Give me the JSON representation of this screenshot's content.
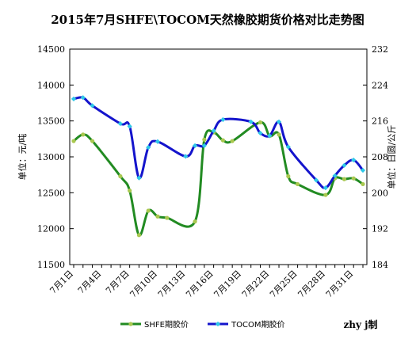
{
  "chart_data": {
    "type": "line",
    "title": "2015年7月SHFE\\TOCOM天然橡胶期货价格对比走势图",
    "ylabel_left": "单位：元/吨",
    "ylabel_right": "单位：日圆/公斤",
    "credit": "zhy j制",
    "categories": [
      "7月1日",
      "7月4日",
      "7月7日",
      "7月10日",
      "7月13日",
      "7月16日",
      "7月19日",
      "7月22日",
      "7月25日",
      "7月28日",
      "7月31日"
    ],
    "x_range": [
      1,
      32
    ],
    "y_left": {
      "min": 11500,
      "max": 14500,
      "ticks": [
        11500,
        12000,
        12500,
        13000,
        13500,
        14000,
        14500
      ]
    },
    "y_right": {
      "min": 184,
      "max": 232,
      "ticks": [
        184,
        192,
        200,
        208,
        216,
        224,
        232
      ]
    },
    "grid": false,
    "legend_position": "bottom",
    "series": [
      {
        "name": "SHFE期胶价",
        "axis": "left",
        "color": "#228B22",
        "marker_color": "#A9C850",
        "x": [
          1,
          2,
          3,
          6,
          7,
          8,
          9,
          10,
          11,
          14,
          15,
          16,
          17,
          18,
          21,
          22,
          23,
          24,
          25,
          28,
          29,
          30,
          31,
          32
        ],
        "y": [
          13220,
          13310,
          13220,
          12730,
          12530,
          11910,
          12250,
          12170,
          12150,
          12100,
          13240,
          13340,
          13230,
          13220,
          13480,
          13290,
          13310,
          12730,
          12620,
          12470,
          12700,
          12690,
          12700,
          12620
        ]
      },
      {
        "name": "TOCOM期胶价",
        "axis": "right",
        "color": "#1414CC",
        "marker_color": "#2EC8E8",
        "x": [
          1,
          2,
          3,
          6,
          7,
          8,
          9,
          10,
          13,
          14,
          15,
          16,
          17,
          20,
          21,
          22,
          23,
          24,
          27,
          28,
          29,
          30,
          31,
          32
        ],
        "y": [
          220.9,
          221.2,
          219.4,
          215.4,
          214.8,
          203.3,
          210.1,
          211.4,
          208.1,
          210.5,
          210.5,
          213.8,
          216.3,
          215.8,
          213.3,
          212.7,
          215.8,
          210.2,
          202.8,
          201.1,
          203.8,
          206.1,
          207.3,
          205.0
        ]
      }
    ]
  }
}
